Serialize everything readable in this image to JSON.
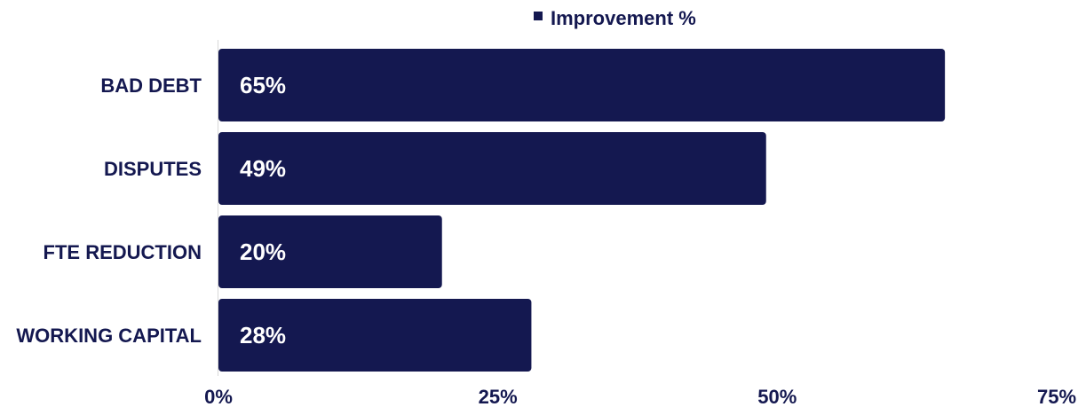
{
  "chart_data": {
    "type": "bar",
    "orientation": "horizontal",
    "categories": [
      "BAD DEBT",
      "DISPUTES",
      "FTE REDUCTION",
      "WORKING CAPITAL"
    ],
    "series": [
      {
        "name": "Improvement %",
        "values": [
          65,
          49,
          20,
          28
        ],
        "color": "#141850"
      }
    ],
    "data_labels": [
      "65%",
      "49%",
      "20%",
      "28%"
    ],
    "xlim": [
      0,
      75
    ],
    "x_ticks": [
      0,
      25,
      50,
      75
    ],
    "x_tick_labels": [
      "0%",
      "25%",
      "50%",
      "75%"
    ],
    "legend_position": "top-center",
    "grid": false
  }
}
